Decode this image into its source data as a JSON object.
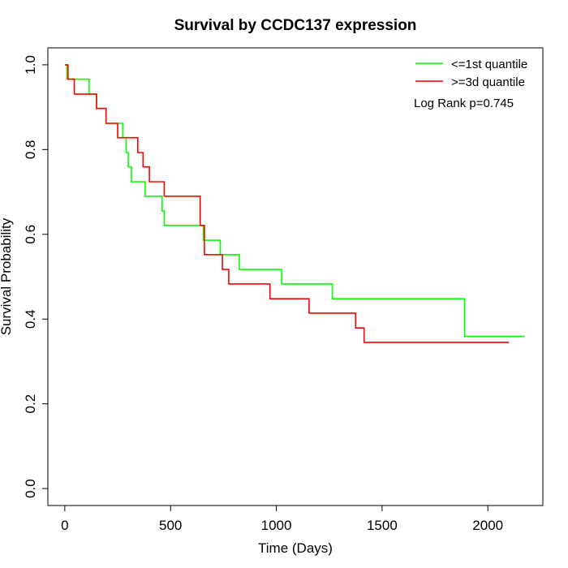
{
  "chart_data": {
    "type": "line",
    "subtype": "kaplan-meier step",
    "title": "Survival by CCDC137 expression",
    "xlabel": "Time (Days)",
    "ylabel": "Survival Probability",
    "xlim": [
      -80,
      2260
    ],
    "ylim": [
      -0.04,
      1.04
    ],
    "xticks": [
      0,
      500,
      1000,
      1500,
      2000
    ],
    "yticks": [
      0.0,
      0.2,
      0.4,
      0.6,
      0.8,
      1.0
    ],
    "xtick_labels": [
      "0",
      "500",
      "1000",
      "1500",
      "2000"
    ],
    "ytick_labels": [
      "0.0",
      "0.2",
      "0.4",
      "0.6",
      "0.8",
      "1.0"
    ],
    "grid": false,
    "legend_position": "top-right",
    "annotation": "Log Rank p=0.745",
    "series": [
      {
        "name": "<=1st quantile",
        "color": "#00ff00",
        "x": [
          0,
          10,
          115,
          150,
          195,
          255,
          275,
          290,
          300,
          315,
          380,
          460,
          470,
          655,
          735,
          825,
          1025,
          1265,
          1890,
          2175
        ],
        "y": [
          1.0,
          0.966,
          0.931,
          0.897,
          0.862,
          0.862,
          0.828,
          0.793,
          0.759,
          0.724,
          0.69,
          0.655,
          0.621,
          0.586,
          0.552,
          0.517,
          0.483,
          0.448,
          0.359,
          0.359
        ]
      },
      {
        "name": ">=3d quantile",
        "color": "#ff0000",
        "x": [
          0,
          15,
          45,
          150,
          195,
          250,
          345,
          370,
          400,
          470,
          640,
          660,
          745,
          775,
          970,
          1155,
          1375,
          1415,
          2100
        ],
        "y": [
          1.0,
          0.966,
          0.931,
          0.897,
          0.862,
          0.828,
          0.793,
          0.759,
          0.724,
          0.69,
          0.621,
          0.552,
          0.517,
          0.483,
          0.448,
          0.414,
          0.379,
          0.345,
          0.345
        ]
      }
    ]
  }
}
